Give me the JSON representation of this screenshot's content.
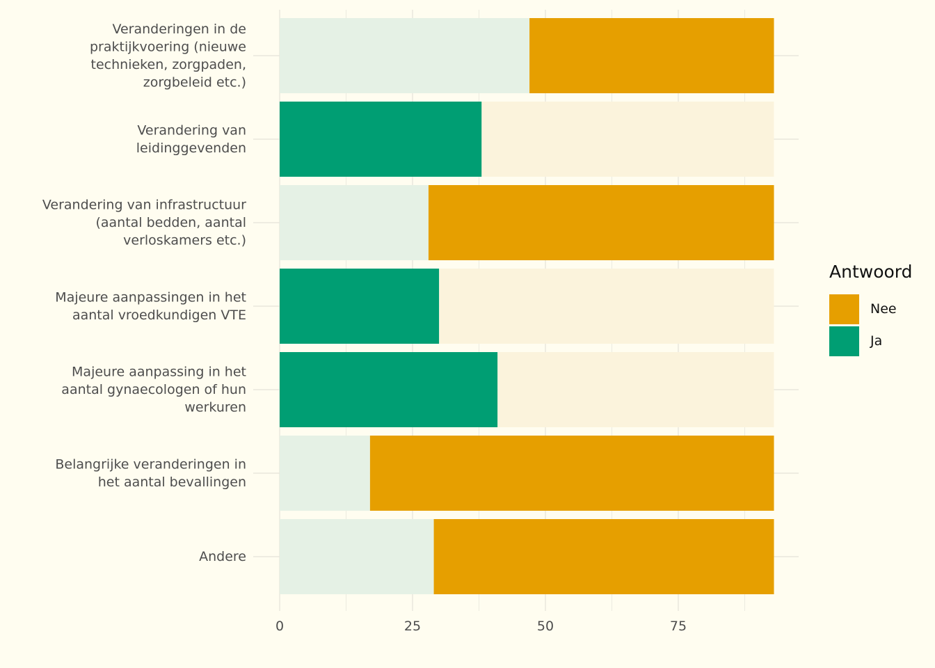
{
  "chart_data": {
    "type": "bar",
    "orientation": "horizontal",
    "stacked": true,
    "categories": [
      "Veranderingen in de praktijkvoering (nieuwe technieken, zorgpaden, zorgbeleid etc.)",
      "Verandering van leidinggevenden",
      "Verandering van infrastructuur (aantal bedden, aantal verloskamers etc.)",
      "Majeure aanpassingen in het aantal vroedkundigen VTE",
      "Majeure aanpassing in het aantal gynaecologen of hun werkuren",
      "Belangrijke veranderingen in het aantal bevallingen",
      "Andere"
    ],
    "category_lines": [
      [
        "Veranderingen in de",
        "praktijkvoering (nieuwe",
        "technieken, zorgpaden,",
        "zorgbeleid etc.)"
      ],
      [
        "Verandering van",
        "leidinggevenden"
      ],
      [
        "Verandering van infrastructuur",
        "(aantal bedden, aantal",
        "verloskamers etc.)"
      ],
      [
        "Majeure aanpassingen in het",
        "aantal vroedkundigen VTE"
      ],
      [
        "Majeure aanpassing in het",
        "aantal gynaecologen of hun",
        "werkuren"
      ],
      [
        "Belangrijke veranderingen in",
        "het aantal bevallingen"
      ],
      [
        "Andere"
      ]
    ],
    "series": [
      {
        "name": "Ja",
        "values": [
          47,
          38,
          28,
          30,
          41,
          17,
          29
        ]
      },
      {
        "name": "Nee",
        "values": [
          46,
          55,
          65,
          63,
          52,
          76,
          64
        ]
      }
    ],
    "highlighted_series": [
      "Nee",
      "Ja",
      "Nee",
      "Ja",
      "Ja",
      "Nee",
      "Nee"
    ],
    "xlim": [
      0,
      97
    ],
    "x_ticks": [
      0,
      25,
      50,
      75
    ],
    "xlabel": "",
    "ylabel": "",
    "grid": true,
    "legend": {
      "title": "Antwoord",
      "position": "right",
      "entries": [
        {
          "label": "Nee",
          "color": "#e69f00"
        },
        {
          "label": "Ja",
          "color": "#009e73"
        }
      ]
    },
    "colors": {
      "Ja": "#009e73",
      "Nee": "#e69f00",
      "Ja_faded": "#e5f1e5",
      "Nee_faded": "#fbf3dc",
      "background": "#fffdf0",
      "grid": "#e8e6dc"
    }
  }
}
